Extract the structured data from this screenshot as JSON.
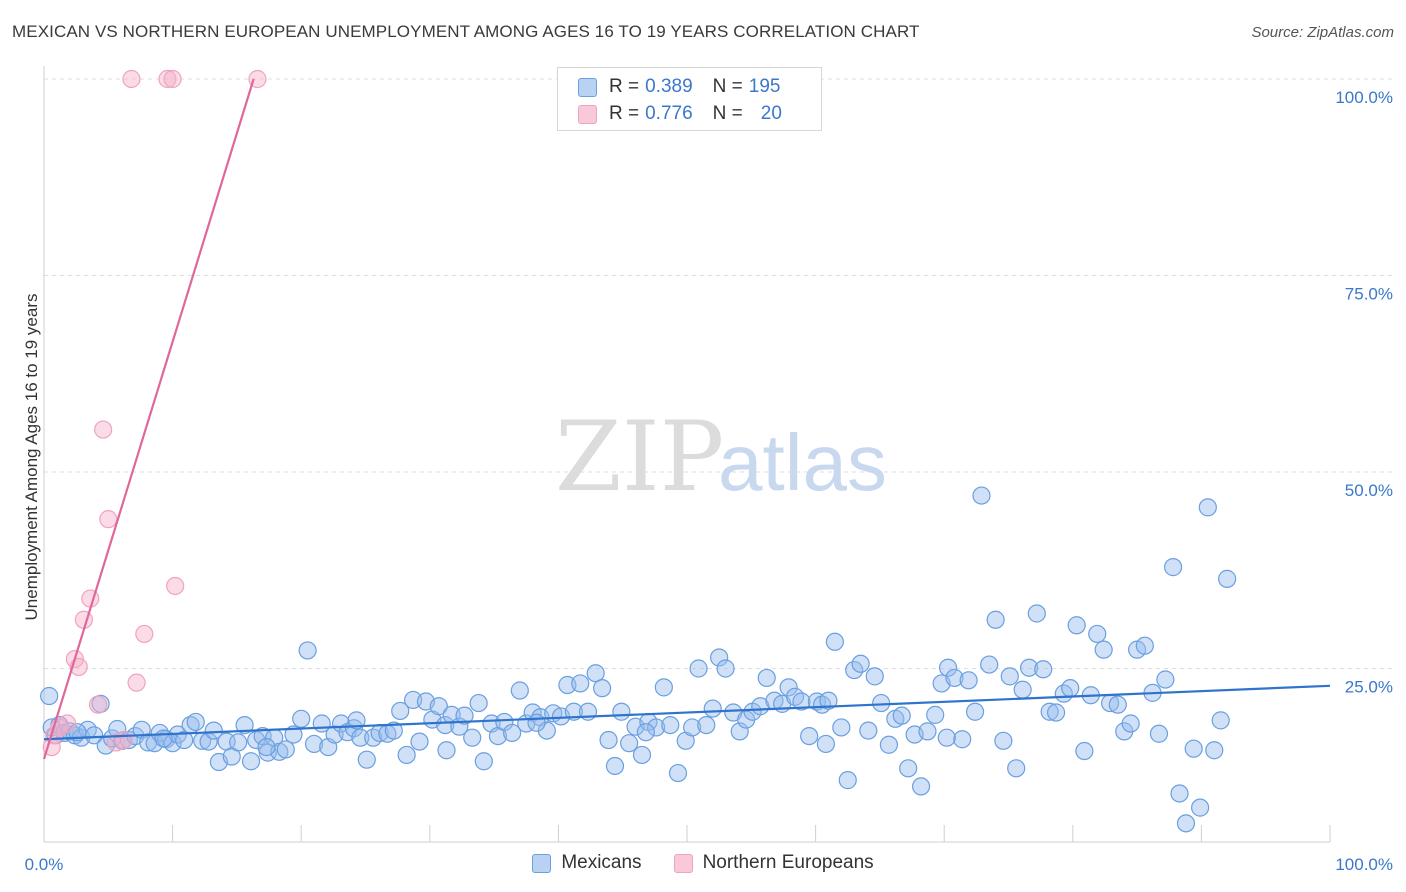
{
  "header": {
    "title": "MEXICAN VS NORTHERN EUROPEAN UNEMPLOYMENT AMONG AGES 16 TO 19 YEARS CORRELATION CHART",
    "source": "Source: ZipAtlas.com"
  },
  "watermark": {
    "zip": "ZIP",
    "atlas": "atlas"
  },
  "legend": {
    "rows": [
      {
        "r_label": "R =",
        "r_value": "0.389",
        "n_label": "N =",
        "n_value": "195",
        "color": "#6a9fe0"
      },
      {
        "r_label": "R =",
        "r_value": "0.776",
        "n_label": "N =",
        "n_value": "20",
        "color": "#f0a3bf"
      }
    ]
  },
  "chart_data": {
    "type": "scatter",
    "ylabel": "Unemployment Among Ages 16 to 19 years",
    "xlabel": "",
    "xlim": [
      0,
      100
    ],
    "ylim": [
      0,
      100
    ],
    "x_tick_labels": [
      "0.0%",
      "100.0%"
    ],
    "y_tick_labels": [
      "100.0%",
      "75.0%",
      "50.0%",
      "25.0%"
    ],
    "y_tick_values": [
      100,
      75,
      50,
      25
    ],
    "grid": "horizontal dashed",
    "legend_position": "bottom-center",
    "series": [
      {
        "name": "Mexicans",
        "color": "#6a9fe0",
        "trendline": {
          "x": [
            0,
            100
          ],
          "y": [
            16.0,
            22.8
          ]
        },
        "points": [
          [
            0.4,
            21.5
          ],
          [
            0.6,
            17.5
          ],
          [
            0.9,
            16.5
          ],
          [
            1.2,
            17.8
          ],
          [
            1.6,
            16.8
          ],
          [
            2.0,
            17.0
          ],
          [
            2.4,
            16.5
          ],
          [
            2.9,
            16.2
          ],
          [
            3.4,
            17.2
          ],
          [
            3.9,
            16.5
          ],
          [
            4.4,
            20.5
          ],
          [
            4.8,
            15.2
          ],
          [
            5.3,
            16.1
          ],
          [
            5.7,
            17.3
          ],
          [
            6.1,
            15.8
          ],
          [
            6.6,
            15.9
          ],
          [
            7.1,
            16.4
          ],
          [
            7.6,
            17.2
          ],
          [
            8.1,
            15.6
          ],
          [
            8.6,
            15.5
          ],
          [
            9.0,
            16.8
          ],
          [
            9.5,
            16.0
          ],
          [
            10.0,
            15.5
          ],
          [
            10.4,
            16.6
          ],
          [
            10.9,
            15.9
          ],
          [
            11.4,
            17.8
          ],
          [
            11.8,
            18.2
          ],
          [
            12.3,
            15.8
          ],
          [
            12.8,
            15.7
          ],
          [
            13.2,
            17.1
          ],
          [
            13.6,
            13.1
          ],
          [
            14.2,
            15.7
          ],
          [
            14.6,
            13.8
          ],
          [
            15.1,
            15.6
          ],
          [
            15.6,
            17.8
          ],
          [
            16.1,
            13.2
          ],
          [
            16.5,
            15.9
          ],
          [
            17.0,
            16.4
          ],
          [
            17.4,
            14.3
          ],
          [
            17.9,
            16.2
          ],
          [
            18.3,
            14.4
          ],
          [
            18.8,
            14.7
          ],
          [
            19.4,
            16.6
          ],
          [
            20.0,
            18.6
          ],
          [
            20.5,
            27.3
          ],
          [
            21.0,
            15.4
          ],
          [
            21.6,
            18.0
          ],
          [
            22.1,
            15.0
          ],
          [
            22.6,
            16.6
          ],
          [
            23.1,
            18.0
          ],
          [
            23.6,
            16.9
          ],
          [
            24.1,
            17.4
          ],
          [
            24.6,
            16.2
          ],
          [
            25.1,
            13.4
          ],
          [
            25.6,
            16.2
          ],
          [
            26.1,
            16.8
          ],
          [
            26.7,
            16.7
          ],
          [
            27.2,
            17.1
          ],
          [
            27.7,
            19.6
          ],
          [
            28.2,
            14.0
          ],
          [
            28.7,
            21.0
          ],
          [
            29.2,
            15.7
          ],
          [
            29.7,
            20.8
          ],
          [
            30.2,
            18.5
          ],
          [
            30.7,
            20.2
          ],
          [
            31.2,
            17.8
          ],
          [
            31.7,
            19.1
          ],
          [
            32.3,
            17.6
          ],
          [
            32.7,
            19.0
          ],
          [
            33.3,
            16.2
          ],
          [
            33.8,
            20.6
          ],
          [
            34.2,
            13.2
          ],
          [
            34.8,
            18.0
          ],
          [
            35.3,
            16.4
          ],
          [
            35.8,
            18.2
          ],
          [
            36.4,
            16.8
          ],
          [
            37.0,
            22.2
          ],
          [
            37.5,
            18.0
          ],
          [
            38.0,
            19.4
          ],
          [
            38.6,
            18.8
          ],
          [
            39.1,
            17.1
          ],
          [
            39.6,
            19.3
          ],
          [
            40.2,
            18.9
          ],
          [
            40.7,
            22.9
          ],
          [
            41.2,
            19.5
          ],
          [
            41.7,
            23.1
          ],
          [
            42.3,
            19.5
          ],
          [
            42.9,
            24.4
          ],
          [
            43.4,
            22.5
          ],
          [
            43.9,
            15.9
          ],
          [
            44.4,
            12.6
          ],
          [
            44.9,
            19.5
          ],
          [
            45.5,
            15.5
          ],
          [
            46.0,
            17.6
          ],
          [
            46.5,
            14.0
          ],
          [
            47.0,
            18.2
          ],
          [
            47.6,
            17.5
          ],
          [
            48.2,
            22.6
          ],
          [
            48.7,
            17.8
          ],
          [
            49.3,
            11.7
          ],
          [
            49.9,
            15.8
          ],
          [
            50.4,
            17.5
          ],
          [
            50.9,
            25.0
          ],
          [
            51.5,
            17.8
          ],
          [
            52.0,
            19.9
          ],
          [
            52.5,
            26.4
          ],
          [
            53.0,
            25.0
          ],
          [
            53.6,
            19.4
          ],
          [
            54.1,
            17.0
          ],
          [
            54.6,
            18.5
          ],
          [
            55.1,
            19.5
          ],
          [
            55.7,
            20.2
          ],
          [
            56.2,
            23.8
          ],
          [
            56.8,
            20.9
          ],
          [
            57.4,
            20.5
          ],
          [
            57.9,
            22.6
          ],
          [
            58.4,
            21.4
          ],
          [
            58.9,
            20.8
          ],
          [
            59.5,
            16.4
          ],
          [
            60.1,
            20.8
          ],
          [
            60.5,
            20.4
          ],
          [
            61.0,
            20.9
          ],
          [
            61.5,
            28.4
          ],
          [
            62.0,
            17.5
          ],
          [
            62.5,
            10.8
          ],
          [
            63.0,
            24.8
          ],
          [
            63.5,
            25.6
          ],
          [
            64.1,
            17.1
          ],
          [
            64.6,
            24.0
          ],
          [
            65.1,
            20.6
          ],
          [
            65.7,
            15.3
          ],
          [
            66.2,
            18.6
          ],
          [
            66.7,
            19.0
          ],
          [
            67.2,
            12.3
          ],
          [
            67.7,
            16.6
          ],
          [
            68.2,
            10.0
          ],
          [
            68.7,
            17.0
          ],
          [
            69.3,
            19.1
          ],
          [
            69.8,
            23.1
          ],
          [
            70.3,
            25.1
          ],
          [
            70.8,
            23.8
          ],
          [
            71.4,
            16.0
          ],
          [
            71.9,
            23.5
          ],
          [
            72.4,
            19.5
          ],
          [
            72.9,
            47.0
          ],
          [
            73.5,
            25.5
          ],
          [
            74.0,
            31.2
          ],
          [
            74.6,
            15.8
          ],
          [
            75.1,
            24.0
          ],
          [
            75.6,
            12.3
          ],
          [
            76.1,
            22.3
          ],
          [
            76.6,
            25.1
          ],
          [
            77.2,
            32.0
          ],
          [
            77.7,
            24.9
          ],
          [
            78.2,
            19.5
          ],
          [
            78.7,
            19.4
          ],
          [
            79.3,
            21.8
          ],
          [
            79.8,
            22.5
          ],
          [
            80.3,
            30.5
          ],
          [
            80.9,
            14.5
          ],
          [
            81.4,
            21.6
          ],
          [
            81.9,
            29.4
          ],
          [
            82.4,
            27.4
          ],
          [
            82.9,
            20.6
          ],
          [
            83.5,
            20.4
          ],
          [
            84.0,
            17.0
          ],
          [
            84.5,
            18.0
          ],
          [
            85.0,
            27.4
          ],
          [
            85.6,
            27.9
          ],
          [
            86.2,
            21.9
          ],
          [
            86.7,
            16.7
          ],
          [
            87.2,
            23.6
          ],
          [
            87.8,
            37.9
          ],
          [
            88.3,
            9.1
          ],
          [
            88.8,
            5.3
          ],
          [
            89.4,
            14.8
          ],
          [
            89.9,
            7.3
          ],
          [
            90.5,
            45.5
          ],
          [
            91.0,
            14.6
          ],
          [
            91.5,
            18.4
          ],
          [
            92.0,
            36.4
          ],
          [
            70.2,
            16.2
          ],
          [
            60.8,
            15.4
          ],
          [
            46.8,
            16.9
          ],
          [
            38.3,
            18.1
          ],
          [
            31.3,
            14.6
          ],
          [
            24.3,
            18.4
          ],
          [
            17.3,
            15.0
          ],
          [
            9.3,
            16.1
          ],
          [
            2.6,
            16.9
          ]
        ]
      },
      {
        "name": "Northern Europeans",
        "color": "#f0a3bf",
        "trendline": {
          "x": [
            0,
            16.3
          ],
          "y": [
            13.5,
            100
          ]
        },
        "points": [
          [
            0.6,
            15.0
          ],
          [
            0.8,
            16.5
          ],
          [
            1.2,
            17.5
          ],
          [
            1.8,
            18.0
          ],
          [
            2.4,
            26.2
          ],
          [
            2.7,
            25.2
          ],
          [
            3.1,
            31.2
          ],
          [
            3.6,
            33.9
          ],
          [
            4.2,
            20.4
          ],
          [
            4.6,
            55.4
          ],
          [
            5.0,
            44.0
          ],
          [
            5.6,
            15.6
          ],
          [
            6.2,
            15.9
          ],
          [
            7.2,
            23.2
          ],
          [
            7.8,
            29.4
          ],
          [
            10.2,
            35.5
          ],
          [
            6.8,
            100
          ],
          [
            9.6,
            100
          ],
          [
            10.0,
            100
          ],
          [
            16.6,
            100
          ]
        ]
      }
    ]
  }
}
